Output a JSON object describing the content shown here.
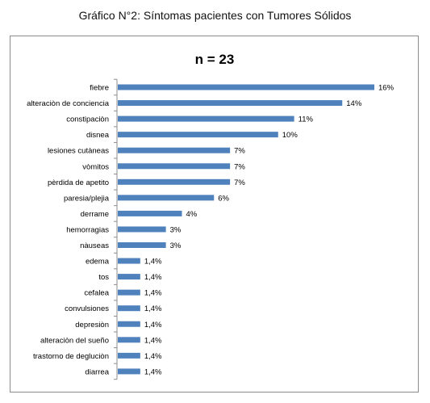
{
  "caption": "Gráfico N°2: Síntomas pacientes con Tumores Sólidos",
  "chart_data": {
    "type": "bar",
    "orientation": "horizontal",
    "title": "n = 23",
    "xlabel": "",
    "ylabel": "",
    "xlim": [
      0,
      16
    ],
    "grid": false,
    "legend": "none",
    "bar_color": "#4f81bd",
    "categories": [
      "fiebre",
      "alteraciòn de conciencia",
      "constipaciòn",
      "disnea",
      "lesiones cutàneas",
      "vòmitos",
      "pèrdida de apetito",
      "paresia/plejia",
      "derrame",
      "hemorragias",
      "nàuseas",
      "edema",
      "tos",
      "cefalea",
      "convulsiones",
      "depresiòn",
      "alteraciòn del sueño",
      "trastorno de degluciòn",
      "diarrea"
    ],
    "values": [
      16,
      14,
      11,
      10,
      7,
      7,
      7,
      6,
      4,
      3,
      3,
      1.4,
      1.4,
      1.4,
      1.4,
      1.4,
      1.4,
      1.4,
      1.4
    ],
    "data_labels": [
      "16%",
      "14%",
      "11%",
      "10%",
      "7%",
      "7%",
      "7%",
      "6%",
      "4%",
      "3%",
      "3%",
      "1,4%",
      "1,4%",
      "1,4%",
      "1,4%",
      "1,4%",
      "1,4%",
      "1,4%",
      "1,4%"
    ]
  }
}
